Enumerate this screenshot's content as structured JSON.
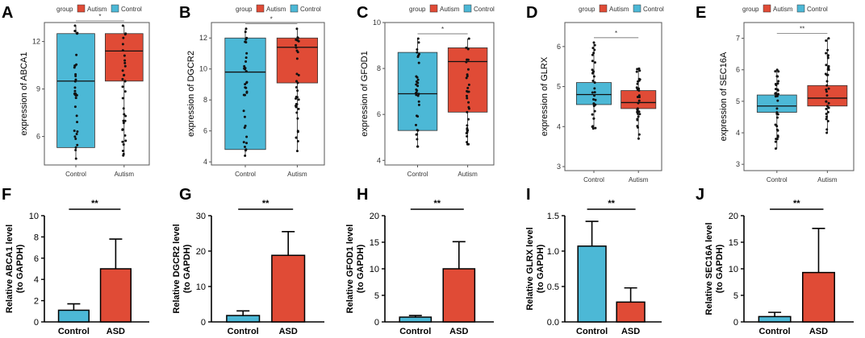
{
  "colors": {
    "autism": "#E04B36",
    "control": "#4CB8D6",
    "bar_asd": "#E04B36",
    "bar_control": "#4CB8D6",
    "axis": "#555555",
    "text": "#000000"
  },
  "legend": {
    "title": "group",
    "items": [
      "Autism",
      "Control"
    ]
  },
  "chart_data": [
    {
      "panel": "A",
      "type": "box",
      "gene": "ABCA1",
      "ylabel": "expression of ABCA1",
      "categories": [
        "Control",
        "Autism"
      ],
      "ylim": [
        4.2,
        13.2
      ],
      "yticks": [
        6,
        9,
        12
      ],
      "significance": "*",
      "boxes": [
        {
          "group": "Control",
          "min": 4.6,
          "q1": 5.3,
          "median": 9.5,
          "q3": 12.5,
          "max": 13.0
        },
        {
          "group": "Autism",
          "min": 4.8,
          "q1": 9.5,
          "median": 11.4,
          "q3": 12.5,
          "max": 13.0
        }
      ]
    },
    {
      "panel": "B",
      "type": "box",
      "gene": "DGCR2",
      "ylabel": "expression of DGCR2",
      "categories": [
        "Control",
        "Autism"
      ],
      "ylim": [
        3.8,
        13.0
      ],
      "yticks": [
        4,
        6,
        8,
        10,
        12
      ],
      "significance": "*",
      "boxes": [
        {
          "group": "Control",
          "min": 4.4,
          "q1": 4.8,
          "median": 9.8,
          "q3": 12.0,
          "max": 12.6
        },
        {
          "group": "Autism",
          "min": 4.7,
          "q1": 9.1,
          "median": 11.4,
          "q3": 12.0,
          "max": 12.6
        }
      ]
    },
    {
      "panel": "C",
      "type": "box",
      "gene": "GFOD1",
      "ylabel": "expression of GFOD1",
      "categories": [
        "Control",
        "Autism"
      ],
      "ylim": [
        3.8,
        10.0
      ],
      "yticks": [
        4,
        6,
        8,
        10
      ],
      "significance": "*",
      "boxes": [
        {
          "group": "Control",
          "min": 4.6,
          "q1": 5.3,
          "median": 6.9,
          "q3": 8.7,
          "max": 9.3
        },
        {
          "group": "Autism",
          "min": 4.7,
          "q1": 6.1,
          "median": 8.3,
          "q3": 8.9,
          "max": 9.3
        }
      ]
    },
    {
      "panel": "D",
      "type": "box",
      "gene": "GLRX",
      "ylabel": "expression of GLRX",
      "categories": [
        "Control",
        "Autism"
      ],
      "ylim": [
        2.9,
        6.6
      ],
      "yticks": [
        3,
        4,
        5,
        6
      ],
      "significance": "*",
      "boxes": [
        {
          "group": "Control",
          "min": 3.95,
          "q1": 4.55,
          "median": 4.8,
          "q3": 5.1,
          "max": 6.1
        },
        {
          "group": "Autism",
          "min": 3.7,
          "q1": 4.45,
          "median": 4.6,
          "q3": 4.9,
          "max": 5.45
        }
      ]
    },
    {
      "panel": "E",
      "type": "box",
      "gene": "SEC16A",
      "ylabel": "expression of SEC16A",
      "categories": [
        "Control",
        "Autism"
      ],
      "ylim": [
        2.8,
        7.5
      ],
      "yticks": [
        3,
        4,
        5,
        6,
        7
      ],
      "significance": "**",
      "boxes": [
        {
          "group": "Control",
          "min": 3.5,
          "q1": 4.65,
          "median": 4.85,
          "q3": 5.2,
          "max": 6.0
        },
        {
          "group": "Autism",
          "min": 4.0,
          "q1": 4.85,
          "median": 5.1,
          "q3": 5.5,
          "max": 7.0
        }
      ]
    },
    {
      "panel": "F",
      "type": "bar",
      "gene": "ABCA1",
      "ylabel": [
        "Relative ABCA1 level",
        "(to GAPDH)"
      ],
      "categories": [
        "Control",
        "ASD"
      ],
      "ylim": [
        0,
        10
      ],
      "yticks": [
        0,
        2,
        4,
        6,
        8,
        10
      ],
      "significance": "**",
      "values": [
        1.1,
        5.0
      ],
      "errors": [
        0.6,
        2.8
      ]
    },
    {
      "panel": "G",
      "type": "bar",
      "gene": "DGCR2",
      "ylabel": [
        "Relative DGCR2 level",
        "(to GAPDH)"
      ],
      "categories": [
        "Control",
        "ASD"
      ],
      "ylim": [
        0,
        30
      ],
      "yticks": [
        0,
        10,
        20,
        30
      ],
      "significance": "**",
      "values": [
        1.8,
        18.8
      ],
      "errors": [
        1.3,
        6.7
      ]
    },
    {
      "panel": "H",
      "type": "bar",
      "gene": "GFOD1",
      "ylabel": [
        "Relative GFOD1 level",
        "(to GAPDH)"
      ],
      "categories": [
        "Control",
        "ASD"
      ],
      "ylim": [
        0,
        20
      ],
      "yticks": [
        0,
        5,
        10,
        15,
        20
      ],
      "significance": "**",
      "values": [
        0.9,
        10.0
      ],
      "errors": [
        0.3,
        5.1
      ]
    },
    {
      "panel": "I",
      "type": "bar",
      "gene": "GLRX",
      "ylabel": [
        "Relative GLRX level",
        "(to GAPDH)"
      ],
      "categories": [
        "Control",
        "ASD"
      ],
      "ylim": [
        0,
        1.5
      ],
      "yticks": [
        0.0,
        0.5,
        1.0,
        1.5
      ],
      "tickDecimals": 1,
      "significance": "**",
      "values": [
        1.07,
        0.28
      ],
      "errors": [
        0.35,
        0.2
      ]
    },
    {
      "panel": "J",
      "type": "bar",
      "gene": "SEC16A",
      "ylabel": [
        "Relative SEC16A level",
        "(to GAPDH)"
      ],
      "categories": [
        "Control",
        "ASD"
      ],
      "ylim": [
        0,
        20
      ],
      "yticks": [
        0,
        5,
        10,
        15,
        20
      ],
      "significance": "**",
      "values": [
        1.0,
        9.3
      ],
      "errors": [
        0.8,
        8.3
      ]
    }
  ]
}
